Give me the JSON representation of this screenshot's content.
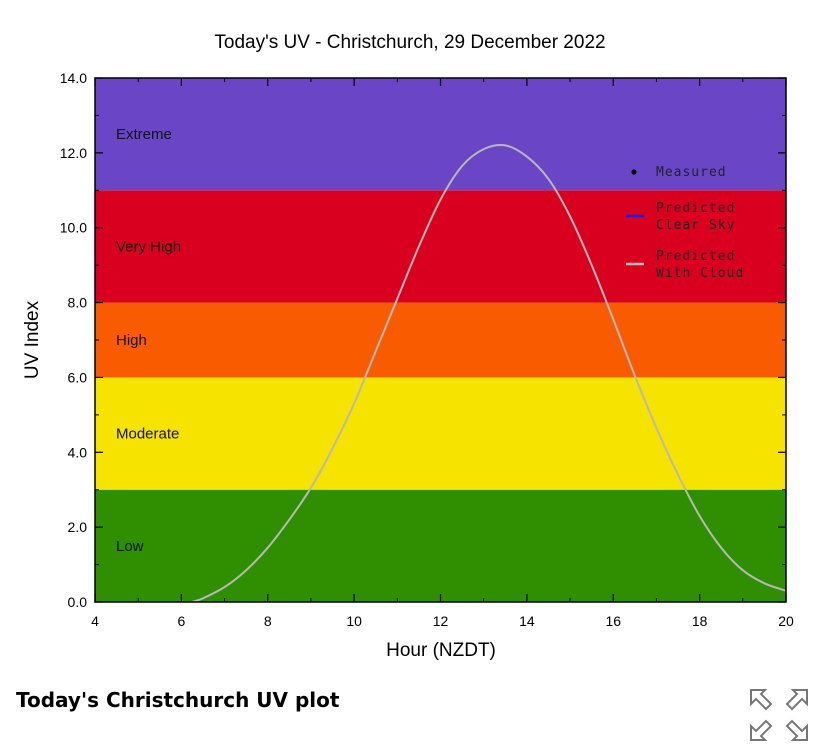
{
  "caption": "Today's Christchurch UV plot",
  "expand_icon": "expand-arrows-icon",
  "colors": {
    "extreme": "#6a46c6",
    "very_high": "#d9001f",
    "high": "#f95c00",
    "moderate": "#f6e300",
    "low": "#2f8f00",
    "clear_sky": "#1c1cf0",
    "with_cloud": "#b8b8b8",
    "measured": "#000000"
  },
  "chart_data": {
    "type": "line",
    "title": "Today's UV - Christchurch, 29 December 2022",
    "xlabel": "Hour (NZDT)",
    "ylabel": "UV Index",
    "xlim": [
      4,
      20
    ],
    "ylim": [
      0,
      14
    ],
    "xticks": [
      "4",
      "6",
      "8",
      "10",
      "12",
      "14",
      "16",
      "18",
      "20"
    ],
    "yticks": [
      "0.0",
      "2.0",
      "4.0",
      "6.0",
      "8.0",
      "10.0",
      "12.0",
      "14.0"
    ],
    "bands": [
      {
        "label": "Low",
        "from": 0,
        "to": 3
      },
      {
        "label": "Moderate",
        "from": 3,
        "to": 6
      },
      {
        "label": "High",
        "from": 6,
        "to": 8
      },
      {
        "label": "Very High",
        "from": 8,
        "to": 11
      },
      {
        "label": "Extreme",
        "from": 11,
        "to": 14
      }
    ],
    "legend": {
      "position": "top-right",
      "entries": [
        {
          "label": "Measured",
          "kind": "point"
        },
        {
          "label": "Predicted Clear Sky",
          "lines": [
            "Predicted",
            "Clear Sky"
          ],
          "kind": "line-blue"
        },
        {
          "label": "Predicted With Cloud",
          "lines": [
            "Predicted",
            "With Cloud"
          ],
          "kind": "line-grey"
        }
      ]
    },
    "series": [
      {
        "name": "Predicted With Cloud",
        "x": [
          6.25,
          6.5,
          7.0,
          7.5,
          8.0,
          8.5,
          9.0,
          9.5,
          10.0,
          10.5,
          11.0,
          11.5,
          12.0,
          12.5,
          13.0,
          13.5,
          14.0,
          14.5,
          15.0,
          15.5,
          16.0,
          16.5,
          17.0,
          17.5,
          18.0,
          18.5,
          19.0,
          19.5,
          20.0
        ],
        "y": [
          0.0,
          0.1,
          0.4,
          0.85,
          1.45,
          2.2,
          3.05,
          4.1,
          5.3,
          6.7,
          8.1,
          9.5,
          10.75,
          11.65,
          12.1,
          12.2,
          11.9,
          11.3,
          10.3,
          9.0,
          7.55,
          6.05,
          4.65,
          3.4,
          2.3,
          1.45,
          0.85,
          0.5,
          0.3
        ]
      }
    ]
  }
}
